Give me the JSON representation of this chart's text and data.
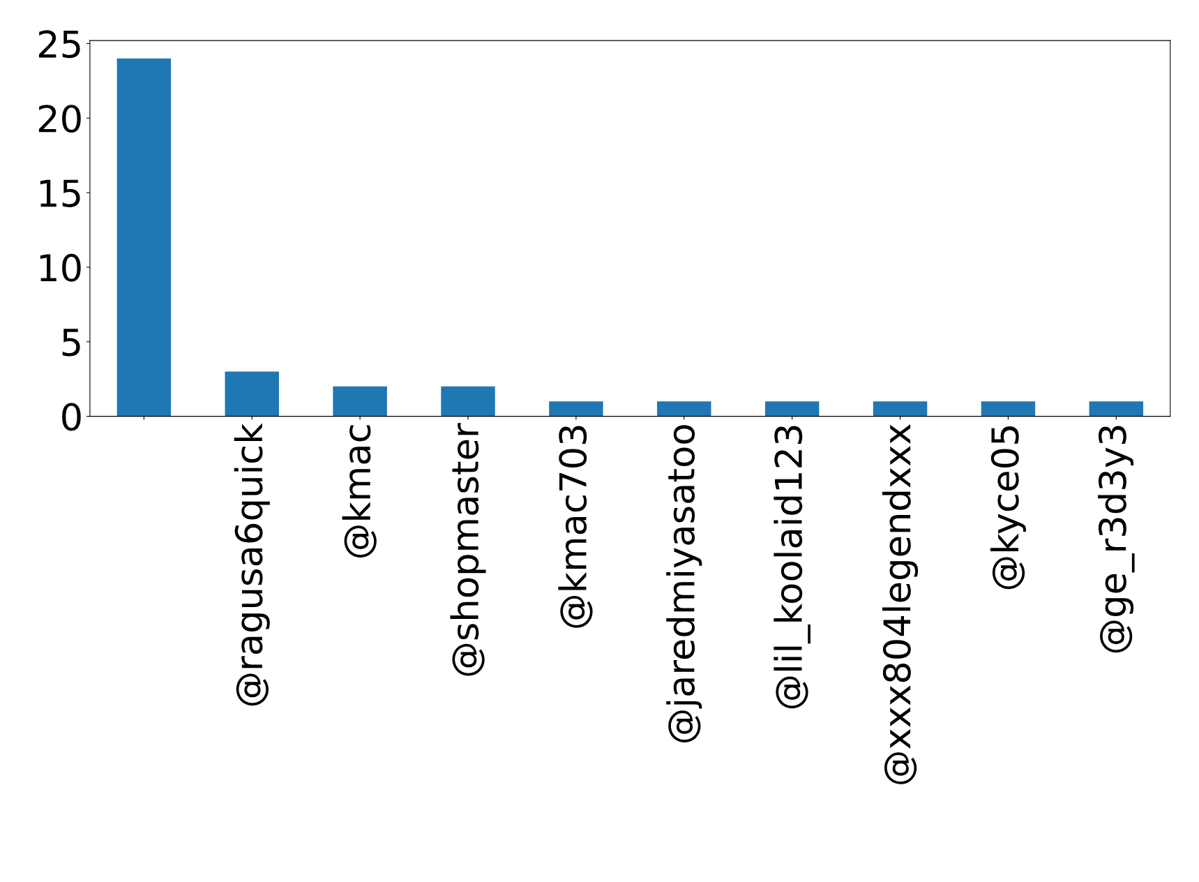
{
  "chart_data": {
    "type": "bar",
    "categories": [
      null,
      "@ragusa6quick",
      "@kmac",
      "@shopmaster",
      "@kmac703",
      "@jaredmiyasatoo",
      "@lil_koolaid123",
      "@xxx804legendxxx",
      "@kyce05",
      "@ge_r3d3y3"
    ],
    "values": [
      24,
      3,
      2,
      2,
      1,
      1,
      1,
      1,
      1,
      1
    ],
    "color": "#1f77b4",
    "ylim": [
      0,
      25.2
    ],
    "yticks": [
      0,
      5,
      10,
      15,
      20,
      25
    ],
    "grid": false,
    "legend": false
  }
}
